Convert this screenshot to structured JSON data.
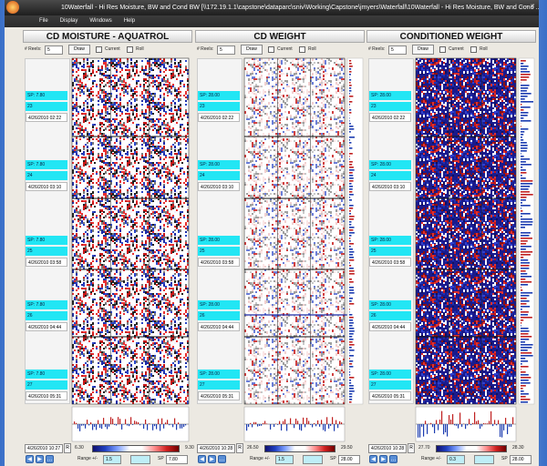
{
  "window": {
    "title": "10Waterfall - Hi Res Moisture, BW and Cond BW    [\\\\172.19.1.1\\capstone\\dataparc\\sniv\\Working\\Capstone\\jmyers\\Waterfall\\10Waterfall - Hi Res Moisture, BW and Cond ...",
    "menu": [
      "File",
      "Display",
      "Windows",
      "Help"
    ]
  },
  "panels": [
    {
      "title": "CD MOISTURE - AQUATROL",
      "reels_label": "# Reels:",
      "reels": "5",
      "draw": "Draw",
      "current": "Current",
      "roll": "Roll",
      "reel_info": [
        {
          "sp": "SP: 7.80",
          "reel": "23",
          "time": "4/26/2010 02:22"
        },
        {
          "sp": "SP: 7.80",
          "reel": "24",
          "time": "4/26/2010 03:10"
        },
        {
          "sp": "SP: 7.80",
          "reel": "25",
          "time": "4/26/2010 03:58"
        },
        {
          "sp": "SP: 7.80",
          "reel": "26",
          "time": "4/26/2010 04:44"
        },
        {
          "sp": "SP: 7.80",
          "reel": "27",
          "time": "4/26/2010 05:31"
        }
      ],
      "footer": {
        "time": "4/26/2010 10:27",
        "min": "6.30",
        "max": "9.30",
        "range_label": "Range +/-",
        "range": "1.5",
        "sp_label": "SP",
        "sp": "7.80"
      }
    },
    {
      "title": "CD WEIGHT",
      "reels_label": "# Reels:",
      "reels": "5",
      "draw": "Draw",
      "current": "Current",
      "roll": "Roll",
      "reel_info": [
        {
          "sp": "SP: 28.00",
          "reel": "23",
          "time": "4/26/2010 02:22"
        },
        {
          "sp": "SP: 28.00",
          "reel": "24",
          "time": "4/26/2010 03:10"
        },
        {
          "sp": "SP: 28.00",
          "reel": "25",
          "time": "4/26/2010 03:58"
        },
        {
          "sp": "SP: 28.00",
          "reel": "26",
          "time": "4/26/2010 04:44"
        },
        {
          "sp": "SP: 28.00",
          "reel": "27",
          "time": "4/26/2010 05:31"
        }
      ],
      "footer": {
        "time": "4/26/2010 10:28",
        "min": "26.50",
        "max": "29.50",
        "range_label": "Range +/-",
        "range": "1.5",
        "sp_label": "SP",
        "sp": "28.00"
      }
    },
    {
      "title": "CONDITIONED WEIGHT",
      "reels_label": "# Reels:",
      "reels": "5",
      "draw": "Draw",
      "current": "Current",
      "roll": "Roll",
      "reel_info": [
        {
          "sp": "SP: 28.00",
          "reel": "23",
          "time": "4/26/2010 02:22"
        },
        {
          "sp": "SP: 28.00",
          "reel": "24",
          "time": "4/26/2010 03:10"
        },
        {
          "sp": "SP: 28.00",
          "reel": "25",
          "time": "4/26/2010 03:58"
        },
        {
          "sp": "SP: 28.00",
          "reel": "26",
          "time": "4/26/2010 04:44"
        },
        {
          "sp": "SP: 28.00",
          "reel": "27",
          "time": "4/26/2010 05:31"
        }
      ],
      "footer": {
        "time": "4/26/2010 10:28",
        "min": "27.70",
        "max": "28.30",
        "range_label": "Range +/-",
        "range": "0.3",
        "sp_label": "SP",
        "sp": "28.00"
      }
    }
  ]
}
